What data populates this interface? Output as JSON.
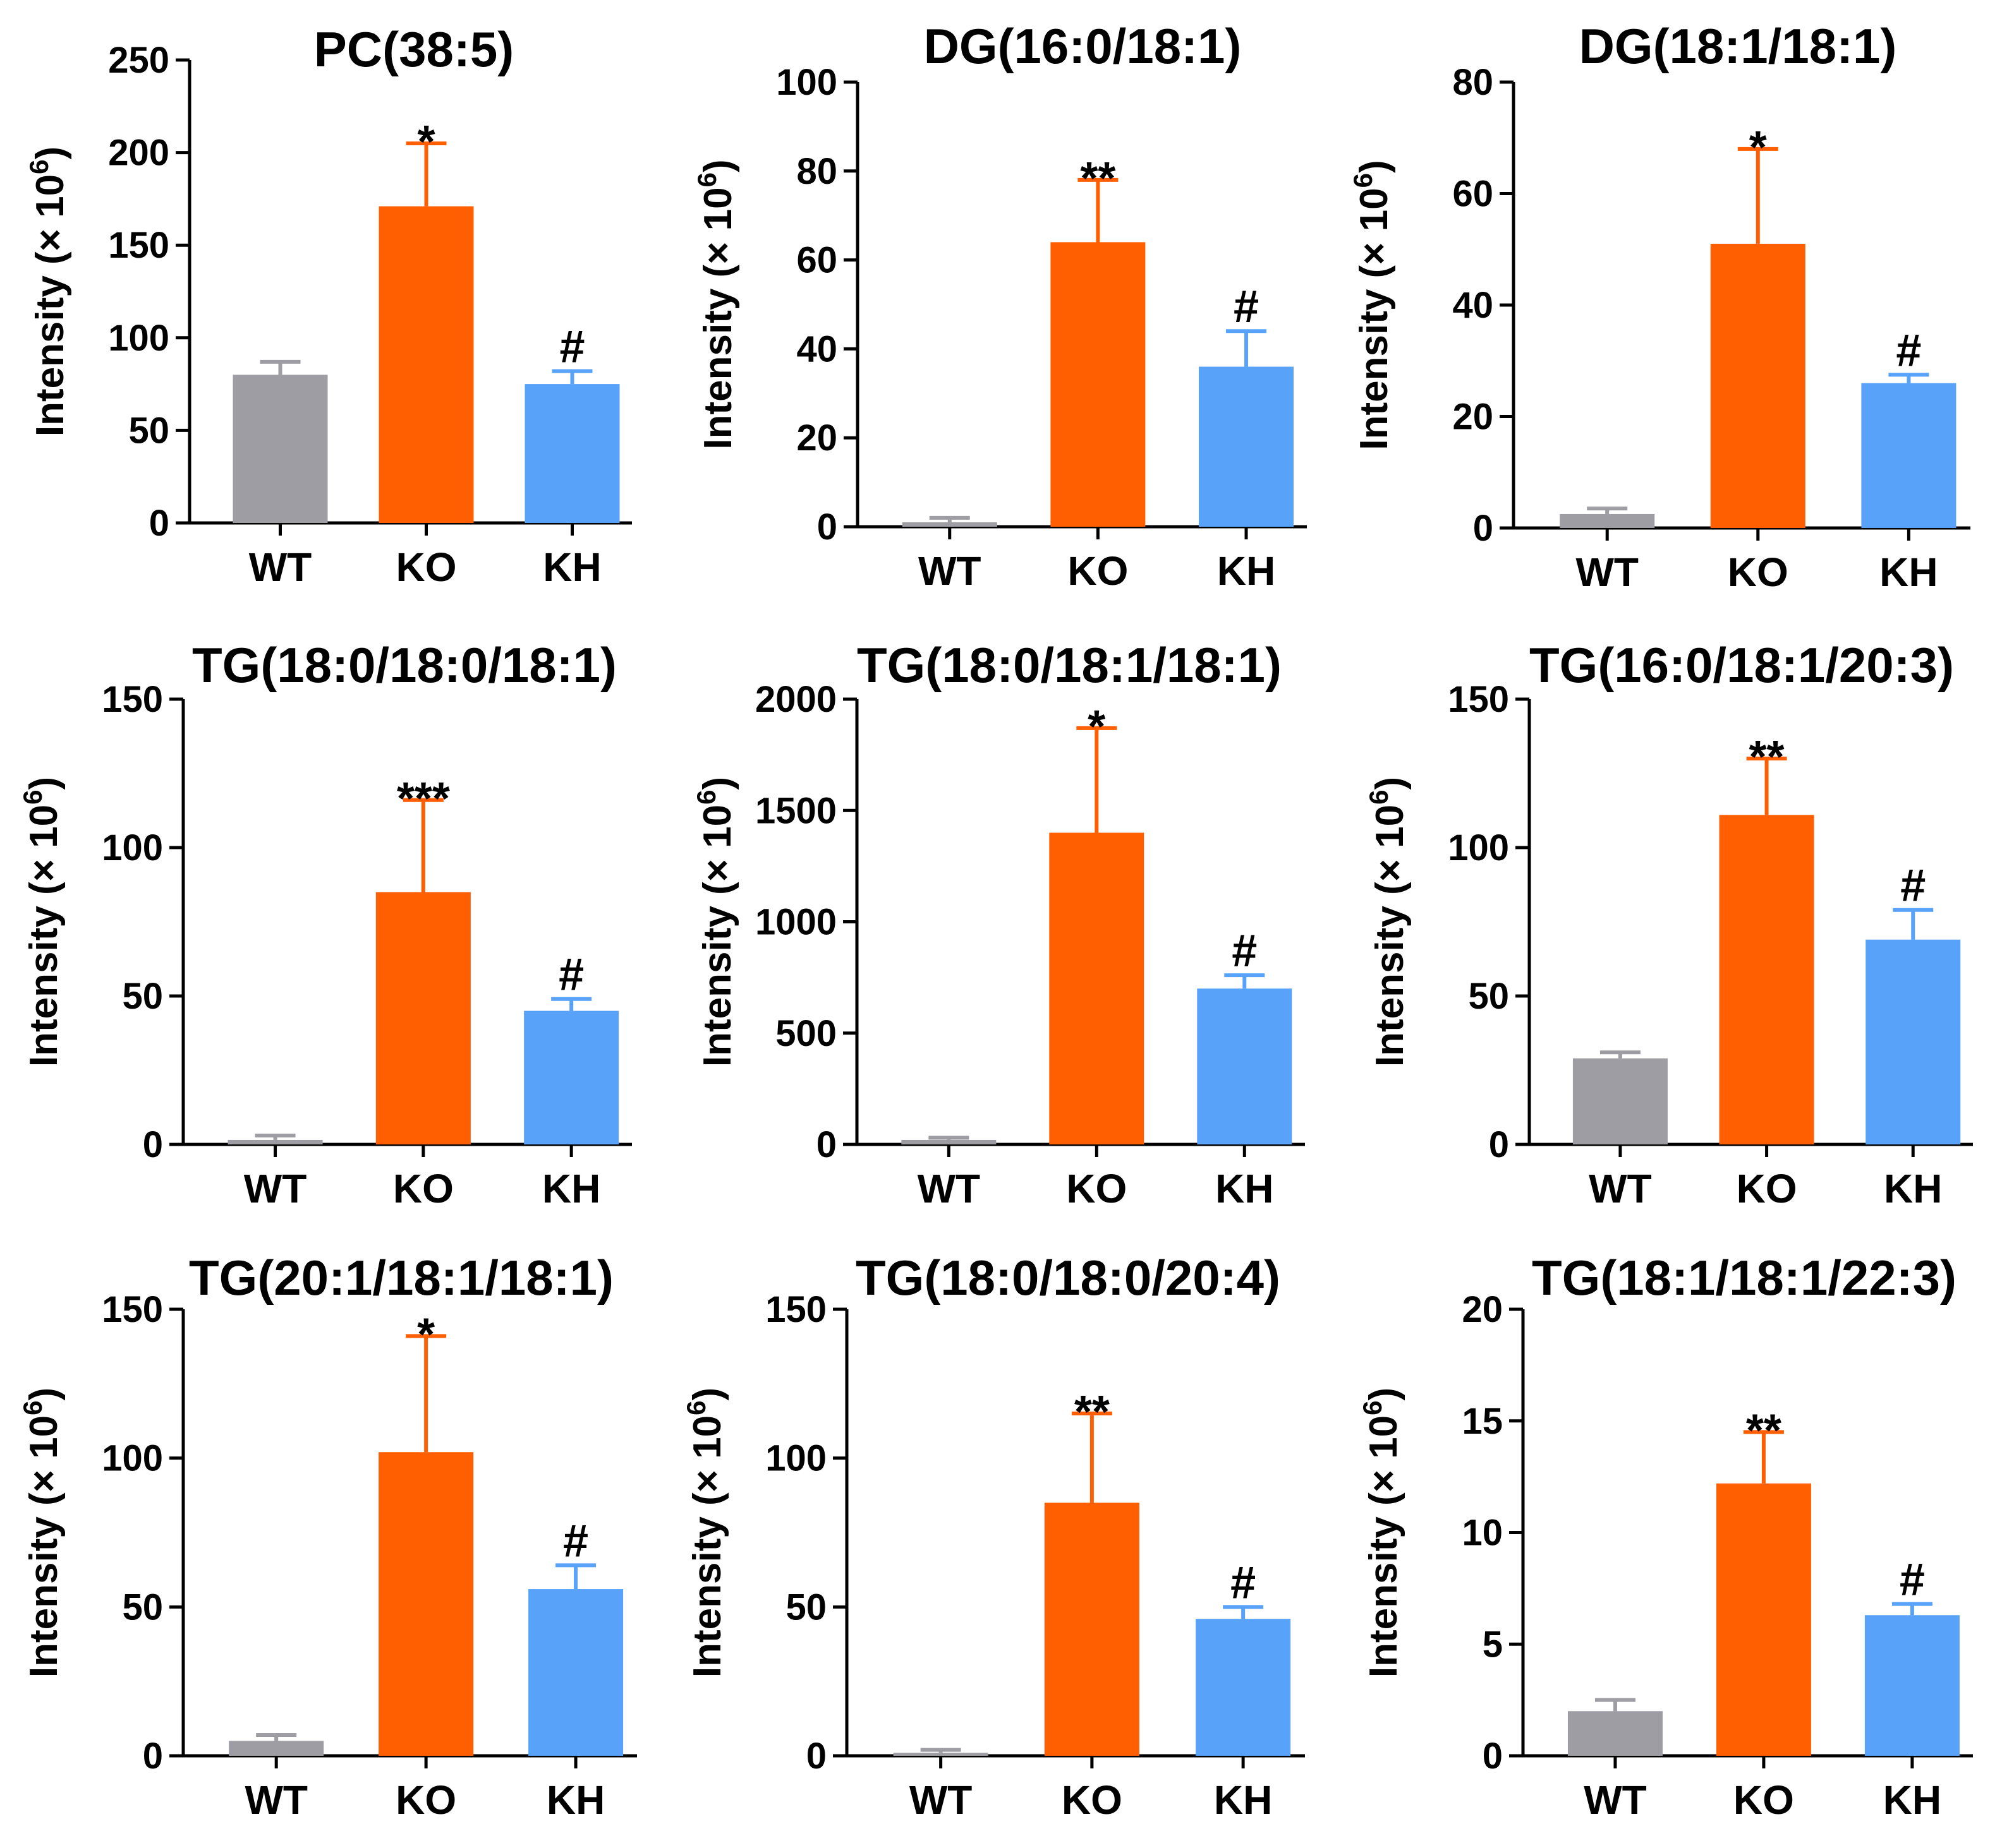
{
  "colors": {
    "WT": "#9d9da3",
    "KO": "#ff5f00",
    "KH": "#58a2fa",
    "axis": "#000000"
  },
  "chart_data": [
    {
      "type": "bar",
      "title": "PC(38:5)",
      "ylabel": "Intensity (× 10",
      "ylabel_exp": "6",
      "ylabel_close": ")",
      "categories": [
        "WT",
        "KO",
        "KH"
      ],
      "values": [
        80,
        171,
        75
      ],
      "errors": [
        7,
        34,
        7
      ],
      "annotations": [
        "",
        "*",
        "#"
      ],
      "ylim": [
        0,
        250
      ],
      "yticks": [
        "0",
        "50",
        "100",
        "150",
        "200",
        "250"
      ]
    },
    {
      "type": "bar",
      "title": "DG(16:0/18:1)",
      "ylabel": "Intensity (× 10",
      "ylabel_exp": "6",
      "ylabel_close": ")",
      "categories": [
        "WT",
        "KO",
        "KH"
      ],
      "values": [
        1,
        64,
        36
      ],
      "errors": [
        1,
        14,
        8
      ],
      "annotations": [
        "",
        "**",
        "#"
      ],
      "ylim": [
        0,
        100
      ],
      "yticks": [
        "0",
        "20",
        "40",
        "60",
        "80",
        "100"
      ]
    },
    {
      "type": "bar",
      "title": "DG(18:1/18:1)",
      "ylabel": "Intensity (× 10",
      "ylabel_exp": "6",
      "ylabel_close": ")",
      "categories": [
        "WT",
        "KO",
        "KH"
      ],
      "values": [
        2.5,
        51,
        26
      ],
      "errors": [
        1,
        17,
        1.5
      ],
      "annotations": [
        "",
        "*",
        "#"
      ],
      "ylim": [
        0,
        80
      ],
      "yticks": [
        "0",
        "20",
        "40",
        "60",
        "80"
      ]
    },
    {
      "type": "bar",
      "title": "TG(18:0/18:0/18:1)",
      "ylabel": "Intensity (× 10",
      "ylabel_exp": "6",
      "ylabel_close": ")",
      "categories": [
        "WT",
        "KO",
        "KH"
      ],
      "values": [
        1.5,
        85,
        45
      ],
      "errors": [
        1.5,
        31,
        4
      ],
      "annotations": [
        "",
        "***",
        "#"
      ],
      "ylim": [
        0,
        150
      ],
      "yticks": [
        "0",
        "50",
        "100",
        "150"
      ]
    },
    {
      "type": "bar",
      "title": "TG(18:0/18:1/18:1)",
      "ylabel": "Intensity (× 10",
      "ylabel_exp": "6",
      "ylabel_close": ")",
      "categories": [
        "WT",
        "KO",
        "KH"
      ],
      "values": [
        20,
        1400,
        700
      ],
      "errors": [
        10,
        470,
        60
      ],
      "annotations": [
        "",
        "*",
        "#"
      ],
      "ylim": [
        0,
        2000
      ],
      "yticks": [
        "0",
        "500",
        "1000",
        "1500",
        "2000"
      ]
    },
    {
      "type": "bar",
      "title": "TG(16:0/18:1/20:3)",
      "ylabel": "Intensity (× 10",
      "ylabel_exp": "6",
      "ylabel_close": ")",
      "categories": [
        "WT",
        "KO",
        "KH"
      ],
      "values": [
        29,
        111,
        69
      ],
      "errors": [
        2,
        19,
        10
      ],
      "annotations": [
        "",
        "**",
        "#"
      ],
      "ylim": [
        0,
        150
      ],
      "yticks": [
        "0",
        "50",
        "100",
        "150"
      ]
    },
    {
      "type": "bar",
      "title": "TG(20:1/18:1/18:1)",
      "ylabel": "Intensity (× 10",
      "ylabel_exp": "6",
      "ylabel_close": ")",
      "categories": [
        "WT",
        "KO",
        "KH"
      ],
      "values": [
        5,
        102,
        56
      ],
      "errors": [
        2,
        39,
        8
      ],
      "annotations": [
        "",
        "*",
        "#"
      ],
      "ylim": [
        0,
        150
      ],
      "yticks": [
        "0",
        "50",
        "100",
        "150"
      ]
    },
    {
      "type": "bar",
      "title": "TG(18:0/18:0/20:4)",
      "ylabel": "Intensity (× 10",
      "ylabel_exp": "6",
      "ylabel_close": ")",
      "categories": [
        "WT",
        "KO",
        "KH"
      ],
      "values": [
        1,
        85,
        46
      ],
      "errors": [
        1,
        30,
        4
      ],
      "annotations": [
        "",
        "**",
        "#"
      ],
      "ylim": [
        0,
        150
      ],
      "yticks": [
        "0",
        "50",
        "100",
        "150"
      ]
    },
    {
      "type": "bar",
      "title": "TG(18:1/18:1/22:3)",
      "ylabel": "Intensity (× 10",
      "ylabel_exp": "6",
      "ylabel_close": ")",
      "categories": [
        "WT",
        "KO",
        "KH"
      ],
      "values": [
        2,
        12.2,
        6.3
      ],
      "errors": [
        0.5,
        2.3,
        0.5
      ],
      "annotations": [
        "",
        "**",
        "#"
      ],
      "ylim": [
        0,
        20
      ],
      "yticks": [
        "0",
        "5",
        "10",
        "15",
        "20"
      ]
    }
  ]
}
